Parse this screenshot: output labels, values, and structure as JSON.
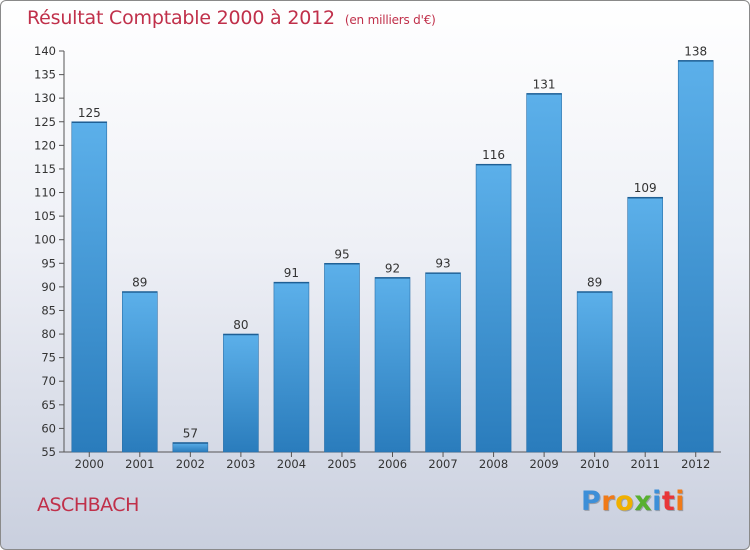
{
  "chart_data": {
    "type": "bar",
    "title": "Résultat Comptable 2000 à 2012",
    "unit_label": "(en milliers d'€)",
    "categories": [
      "2000",
      "2001",
      "2002",
      "2003",
      "2004",
      "2005",
      "2006",
      "2007",
      "2008",
      "2009",
      "2010",
      "2011",
      "2012"
    ],
    "values": [
      125,
      89,
      57,
      80,
      91,
      95,
      92,
      93,
      116,
      131,
      89,
      109,
      138
    ],
    "ylim": [
      55,
      140
    ],
    "yticks": [
      55,
      60,
      65,
      70,
      75,
      80,
      85,
      90,
      95,
      100,
      105,
      110,
      115,
      120,
      125,
      130,
      135,
      140
    ],
    "xlabel": "",
    "ylabel": "",
    "grid": false,
    "colors": {
      "bar_light": "#5cb0ea",
      "bar_dark": "#2a7cbc",
      "text": "#c0304a"
    }
  },
  "place_name": "ASCHBACH",
  "logo": {
    "text": "Proxiti",
    "letter_colors": [
      "#3d8fd8",
      "#f07a18",
      "#f0b000",
      "#58b030",
      "#3d8fd8",
      "#e8363a",
      "#f07a18"
    ]
  }
}
